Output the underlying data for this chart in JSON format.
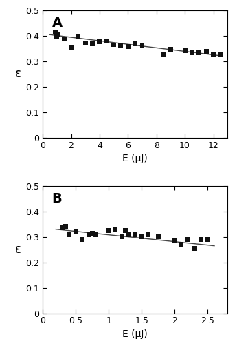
{
  "panel_A": {
    "label": "A",
    "scatter_x": [
      0.9,
      1.0,
      1.1,
      1.5,
      2.0,
      2.5,
      3.0,
      3.5,
      4.0,
      4.5,
      5.0,
      5.5,
      6.0,
      6.5,
      7.0,
      8.5,
      9.0,
      10.0,
      10.5,
      11.0,
      11.5,
      12.0,
      12.5
    ],
    "scatter_y": [
      0.415,
      0.4,
      0.405,
      0.388,
      0.353,
      0.398,
      0.373,
      0.37,
      0.378,
      0.38,
      0.365,
      0.363,
      0.358,
      0.368,
      0.36,
      0.325,
      0.348,
      0.343,
      0.335,
      0.333,
      0.34,
      0.328,
      0.328
    ],
    "fit_x": [
      0.5,
      12.5
    ],
    "fit_y": [
      0.405,
      0.322
    ],
    "xlabel": "E (μJ)",
    "ylabel": "ε",
    "xlim": [
      0,
      13
    ],
    "ylim": [
      0,
      0.5
    ],
    "xticks": [
      0,
      2,
      4,
      6,
      8,
      10,
      12
    ],
    "yticks": [
      0,
      0.1,
      0.2,
      0.3,
      0.4,
      0.5
    ]
  },
  "panel_B": {
    "label": "B",
    "scatter_x": [
      0.3,
      0.35,
      0.4,
      0.5,
      0.6,
      0.7,
      0.75,
      0.8,
      1.0,
      1.1,
      1.2,
      1.25,
      1.3,
      1.4,
      1.5,
      1.6,
      1.75,
      2.0,
      2.1,
      2.2,
      2.3,
      2.4,
      2.5
    ],
    "scatter_y": [
      0.335,
      0.34,
      0.31,
      0.32,
      0.29,
      0.31,
      0.315,
      0.31,
      0.325,
      0.33,
      0.3,
      0.325,
      0.31,
      0.31,
      0.3,
      0.31,
      0.3,
      0.285,
      0.27,
      0.29,
      0.255,
      0.29,
      0.29
    ],
    "fit_x": [
      0.2,
      2.6
    ],
    "fit_y": [
      0.33,
      0.265
    ],
    "xlabel": "E (μJ)",
    "ylabel": "ε",
    "xlim": [
      0,
      2.8
    ],
    "ylim": [
      0,
      0.5
    ],
    "xticks": [
      0,
      0.5,
      1.0,
      1.5,
      2.0,
      2.5
    ],
    "yticks": [
      0,
      0.1,
      0.2,
      0.3,
      0.4,
      0.5
    ]
  },
  "marker_color": "#111111",
  "line_color": "#444444",
  "marker_size": 5,
  "line_width": 1.0,
  "label_fontsize": 10,
  "tick_fontsize": 9,
  "panel_label_fontsize": 14,
  "fig_width": 3.45,
  "fig_height": 5.05,
  "dpi": 100
}
